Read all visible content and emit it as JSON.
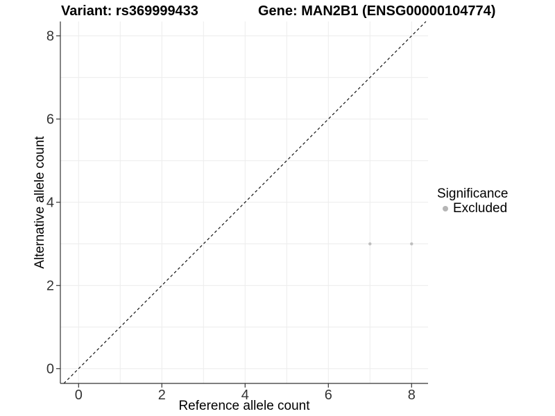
{
  "chart_data": {
    "type": "scatter",
    "titles": {
      "left": "Variant: rs369999433",
      "right": "Gene: MAN2B1 (ENSG00000104774)"
    },
    "xlabel": "Reference allele count",
    "ylabel": "Alternative allele count",
    "xlim": [
      -0.45,
      8.45
    ],
    "ylim": [
      -0.35,
      8.35
    ],
    "x_ticks": [
      0,
      2,
      4,
      6,
      8
    ],
    "y_ticks": [
      0,
      2,
      4,
      6,
      8
    ],
    "grid": "on",
    "grid_positions": [
      0,
      1,
      2,
      3,
      4,
      5,
      6,
      7,
      8
    ],
    "reference_line": {
      "type": "identity",
      "slope": 1,
      "intercept": 0,
      "style": "dashed",
      "color": "#111111"
    },
    "series": [
      {
        "name": "Excluded",
        "color": "#bebebe",
        "points": [
          [
            7,
            3
          ],
          [
            8,
            3
          ]
        ]
      }
    ],
    "legend": {
      "title": "Significance",
      "position": "right",
      "entries": [
        {
          "label": "Excluded",
          "color": "#b5b5b5"
        }
      ]
    },
    "colors": {
      "background": "#ffffff",
      "grid": "#ececec",
      "axis_line": "#333333",
      "tick_label": "#333333"
    }
  }
}
